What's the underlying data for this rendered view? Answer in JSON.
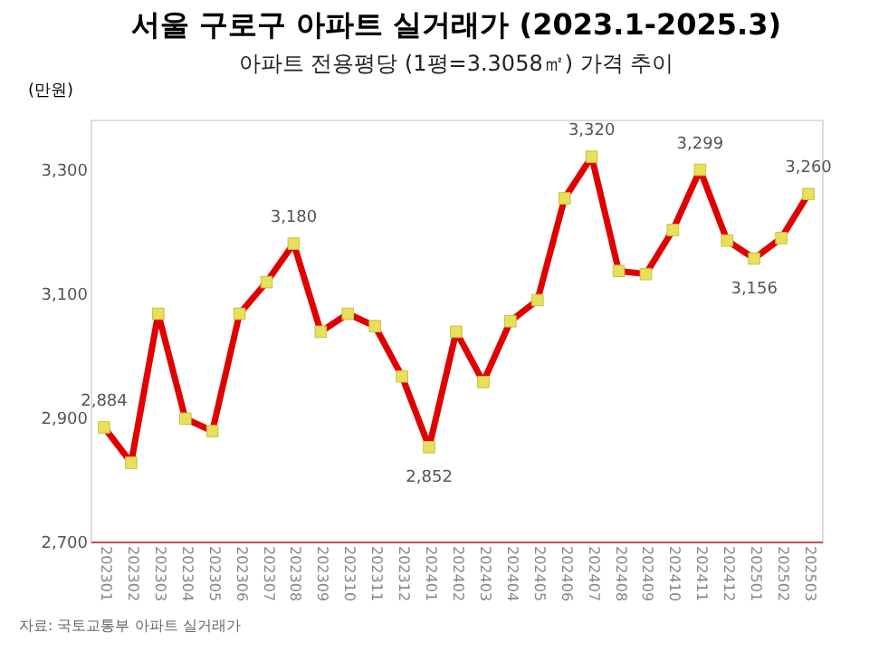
{
  "chart_data": {
    "type": "line",
    "title": "서울 구로구 아파트 실거래가 (2023.1-2025.3)",
    "subtitle": "아파트 전용평당 (1평=3.3058㎡) 가격 추이",
    "ylabel": "(만원)",
    "categories": [
      "202301",
      "202302",
      "202303",
      "202304",
      "202305",
      "202306",
      "202307",
      "202308",
      "202309",
      "202310",
      "202311",
      "202312",
      "202401",
      "202402",
      "202403",
      "202404",
      "202405",
      "202406",
      "202407",
      "202408",
      "202409",
      "202410",
      "202411",
      "202412",
      "202501",
      "202502",
      "202503"
    ],
    "series": [
      {
        "color": "#e00000",
        "values": [
          2884,
          2827,
          3067,
          2898,
          2878,
          3067,
          3118,
          3180,
          3038,
          3067,
          3047,
          2966,
          2852,
          3038,
          2957,
          3055,
          3089,
          3253,
          3320,
          3136,
          3131,
          3202,
          3299,
          3185,
          3156,
          3189,
          3260
        ],
        "value_labels": [
          "2,884",
          null,
          null,
          null,
          null,
          null,
          null,
          "3,180",
          null,
          null,
          null,
          null,
          "2,852",
          null,
          null,
          null,
          null,
          null,
          "3,320",
          null,
          null,
          null,
          "3,299",
          null,
          "3,156",
          null,
          "3,260"
        ]
      }
    ],
    "ylim": [
      2700,
      3380
    ],
    "yticks": [
      {
        "value": 2700,
        "label": "2,700"
      },
      {
        "value": 2900,
        "label": "2,900"
      },
      {
        "value": 3100,
        "label": "3,100"
      },
      {
        "value": 3300,
        "label": "3,300"
      }
    ],
    "marker": "square",
    "grid": false,
    "annotations": [
      "자료: 국토교통부 아파트 실거래가"
    ]
  }
}
